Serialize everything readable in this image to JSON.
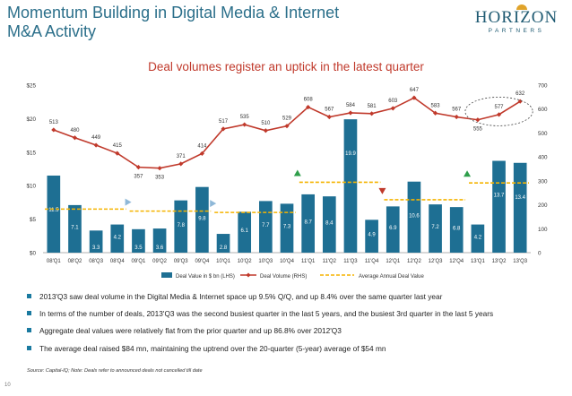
{
  "header": {
    "title_line1": "Momentum Building in Digital Media & Internet",
    "title_line2": "M&A Activity",
    "logo_main": "HORIZON",
    "logo_sub": "PARTNERS"
  },
  "headline": "Deal volumes register an uptick in the latest quarter",
  "chart_data": {
    "type": "bar+line",
    "categories": [
      "08'Q1",
      "08'Q2",
      "08'Q3",
      "08'Q4",
      "09'Q1",
      "09'Q2",
      "09'Q3",
      "09'Q4",
      "10'Q1",
      "10'Q2",
      "10'Q3",
      "10'Q4",
      "11'Q1",
      "11'Q2",
      "11'Q3",
      "11'Q4",
      "12'Q1",
      "12'Q2",
      "12'Q3",
      "12'Q4",
      "13'Q1",
      "13'Q2",
      "13'Q3"
    ],
    "series": [
      {
        "name": "Deal Value in $ bn (LHS)",
        "type": "bar",
        "axis": "left",
        "values": [
          11.5,
          7.1,
          3.3,
          4.2,
          3.5,
          3.6,
          7.8,
          9.8,
          2.8,
          6.1,
          7.7,
          7.3,
          8.7,
          8.4,
          19.9,
          4.9,
          6.9,
          10.6,
          7.2,
          6.8,
          4.2,
          13.7,
          13.4
        ]
      },
      {
        "name": "Deal Volume (RHS)",
        "type": "line",
        "axis": "right",
        "values": [
          513,
          480,
          449,
          415,
          357,
          353,
          371,
          414,
          517,
          535,
          510,
          529,
          608,
          567,
          584,
          581,
          603,
          647,
          583,
          567,
          555,
          577,
          632
        ]
      },
      {
        "name": "Average Annual Deal Value",
        "type": "line",
        "axis": "left",
        "style": "dashed",
        "segments": [
          {
            "from": 0,
            "to": 3,
            "value": 6.5
          },
          {
            "from": 4,
            "to": 7,
            "value": 6.2
          },
          {
            "from": 8,
            "to": 11,
            "value": 6.0
          },
          {
            "from": 12,
            "to": 15,
            "value": 10.5
          },
          {
            "from": 16,
            "to": 19,
            "value": 7.9
          },
          {
            "from": 20,
            "to": 22,
            "value": 10.4
          }
        ]
      }
    ],
    "left_axis": {
      "min": 0,
      "max": 25,
      "ticks": [
        "$0",
        "$5",
        "$10",
        "$15",
        "$20",
        "$25"
      ],
      "tick_values": [
        0,
        5,
        10,
        15,
        20,
        25
      ]
    },
    "right_axis": {
      "min": 0,
      "max": 700,
      "ticks": [
        "0",
        "100",
        "200",
        "300",
        "400",
        "500",
        "600",
        "700"
      ],
      "tick_values": [
        0,
        100,
        200,
        300,
        400,
        500,
        600,
        700
      ]
    },
    "trend_markers": [
      {
        "between": [
          3,
          4
        ],
        "kind": "flat",
        "color": "#8fb8d8"
      },
      {
        "between": [
          7,
          8
        ],
        "kind": "flat",
        "color": "#8fb8d8"
      },
      {
        "between": [
          11,
          12
        ],
        "kind": "up",
        "color": "#2e9e4a"
      },
      {
        "between": [
          15,
          16
        ],
        "kind": "down",
        "color": "#c0392b"
      },
      {
        "between": [
          19,
          20
        ],
        "kind": "up",
        "color": "#2e9e4a"
      }
    ],
    "highlight": {
      "from": 20,
      "to": 22,
      "shape": "dashed-ellipse"
    },
    "colors": {
      "bar": "#1e6f93",
      "line": "#c0392b",
      "avg": "#f5b400"
    }
  },
  "bullets": [
    "2013'Q3 saw deal volume in the Digital Media & Internet space up 9.5% Q/Q, and up 8.4% over the same quarter last year",
    "In terms of the number of deals, 2013'Q3 was the second busiest quarter in the last 5 years, and the busiest 3rd quarter in the last 5 years",
    "Aggregate deal values were relatively flat from the prior quarter and up 86.8% over 2012'Q3",
    "The average deal raised $84 mn, maintaining the uptrend over the 20-quarter (5-year) average of $54 mn"
  ],
  "source": "Source: Capital-IQ; Note: Deals refer to announced deals not cancelled till date",
  "page_number": "10"
}
